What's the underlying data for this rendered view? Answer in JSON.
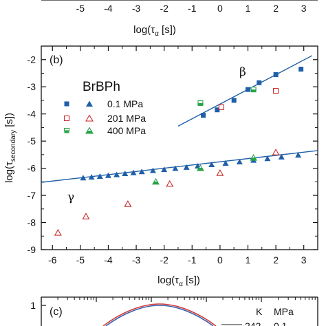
{
  "top_panel": {
    "x_ticks": [
      "-5",
      "-4",
      "-3",
      "-2",
      "-1",
      "0",
      "1",
      "2",
      "3"
    ],
    "x_tick_values": [
      -5,
      -4,
      -3,
      -2,
      -1,
      0,
      1,
      2,
      3
    ],
    "xlabel_main": "log(τ",
    "xlabel_sub": "α",
    "xlabel_end": " [s])"
  },
  "chart_data": [
    {
      "panel": "b",
      "type": "scatter",
      "panel_label": "(b)",
      "sample": "BrBPh",
      "xlabel_main": "log(τ",
      "xlabel_sub": "α",
      "xlabel_end": " [s])",
      "ylabel_main": "log(τ",
      "ylabel_sub": "secondary",
      "ylabel_end": " [s])",
      "xlim": [
        -6.4,
        3.5
      ],
      "ylim": [
        -9,
        -1.5
      ],
      "x_ticks": [
        "-6",
        "-5",
        "-4",
        "-3",
        "-2",
        "-1",
        "0",
        "1",
        "2",
        "3"
      ],
      "x_tick_values": [
        -6,
        -5,
        -4,
        -3,
        -2,
        -1,
        0,
        1,
        2,
        3
      ],
      "y_ticks": [
        "-2",
        "-3",
        "-4",
        "-5",
        "-6",
        "-7",
        "-8",
        "-9"
      ],
      "y_tick_values": [
        -2,
        -3,
        -4,
        -5,
        -6,
        -7,
        -8,
        -9
      ],
      "grid": false,
      "legend_placement": "upper-left",
      "relaxation_labels": {
        "beta": "β",
        "gamma": "γ"
      },
      "colors": {
        "p01": "#1f5fa8",
        "p201": "#cc2a2a",
        "p400": "#27a348",
        "fit": "#1f5fa8"
      },
      "legend": [
        {
          "label": "0.1 MPa",
          "series": [
            "beta_0.1MPa",
            "gamma_0.1MPa"
          ]
        },
        {
          "label": "201 MPa",
          "series": [
            "beta_201MPa",
            "gamma_201MPa"
          ]
        },
        {
          "label": "400 MPa",
          "series": [
            "beta_400MPa",
            "gamma_400MPa"
          ]
        }
      ],
      "series": [
        {
          "id": "beta_0.1MPa",
          "marker": "square-filled",
          "color": "#1f5fa8",
          "x": [
            -0.6,
            -0.1,
            0.5,
            1.0,
            1.4,
            2.0,
            2.9
          ],
          "y": [
            -4.05,
            -3.85,
            -3.5,
            -3.1,
            -2.85,
            -2.55,
            -2.35
          ]
        },
        {
          "id": "gamma_0.1MPa",
          "marker": "triangle-filled",
          "color": "#1f5fa8",
          "x": [
            -4.9,
            -4.6,
            -4.3,
            -4.0,
            -3.7,
            -3.4,
            -3.1,
            -2.8,
            -2.4,
            -2.0,
            -1.6,
            -1.2,
            -0.8,
            -0.3,
            0.2,
            0.7,
            1.2,
            1.7,
            2.2,
            2.8
          ],
          "y": [
            -6.36,
            -6.33,
            -6.3,
            -6.27,
            -6.24,
            -6.2,
            -6.17,
            -6.13,
            -6.09,
            -6.05,
            -6.01,
            -5.97,
            -5.92,
            -5.87,
            -5.82,
            -5.77,
            -5.71,
            -5.65,
            -5.59,
            -5.52
          ]
        },
        {
          "id": "beta_201MPa",
          "marker": "square-open",
          "color": "#cc2a2a",
          "x": [
            0.05,
            2.0
          ],
          "y": [
            -3.75,
            -3.15
          ]
        },
        {
          "id": "gamma_201MPa",
          "marker": "triangle-open",
          "color": "#cc2a2a",
          "x": [
            -5.8,
            -4.8,
            -3.3,
            -1.8,
            0.0,
            2.0
          ],
          "y": [
            -8.38,
            -7.78,
            -7.32,
            -6.58,
            -6.18,
            -5.42
          ]
        },
        {
          "id": "beta_400MPa",
          "marker": "square-half",
          "color": "#27a348",
          "x": [
            -0.7,
            1.2
          ],
          "y": [
            -3.6,
            -3.1
          ]
        },
        {
          "id": "gamma_400MPa",
          "marker": "triangle-half",
          "color": "#27a348",
          "x": [
            -2.3,
            -0.7,
            1.2
          ],
          "y": [
            -6.5,
            -6.0,
            -5.62
          ]
        }
      ],
      "fit_lines": [
        {
          "id": "beta-fit",
          "x": [
            -1.5,
            3.3
          ],
          "y": [
            -4.45,
            -1.85
          ]
        },
        {
          "id": "gamma-fit",
          "x": [
            -6.4,
            3.5
          ],
          "y": [
            -6.52,
            -5.35
          ]
        }
      ]
    }
  ],
  "bottom_panel": {
    "panel_label": "(c)",
    "y_tick": "1",
    "legend_header": [
      "K",
      "MPa"
    ],
    "legend_row": [
      "242",
      "0.1"
    ],
    "colors": {
      "curve_blue": "#3a5fb0",
      "curve_red": "#d23a3a"
    }
  }
}
